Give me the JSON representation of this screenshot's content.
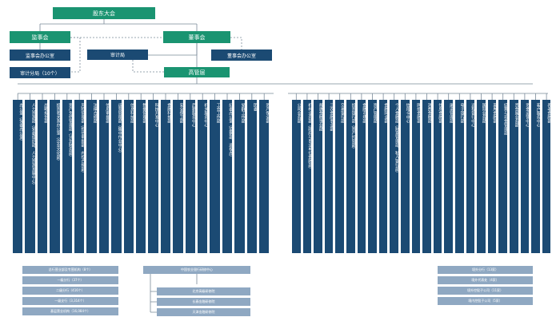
{
  "top": {
    "shareholders": "股东大会",
    "supervisory_board": "监事会",
    "board": "董事会",
    "supervisory_office": "监事会办公室",
    "audit_bureau": "审计局",
    "board_office": "董事会办公室",
    "audit_branches": "审计分局（10个）",
    "senior_management": "高管层"
  },
  "left_departments": [
    "办公室（党委办公室）",
    "人力资源部（党委组织部、人力资源发展中心）",
    "战略规划部",
    "投资者关系办公室（企业文化部）",
    "资产负债管理部（计划财务部）",
    "风险管理部（授信审批部、内控合规部）",
    "法律合规部",
    "信用审批部",
    "运营管理部（集中作业中心）",
    "信息科技部",
    "数据管理部",
    "科技开发中心",
    "金融科技部",
    "安全保卫部",
    "后勤服务中心",
    "机关服务中心",
    "工会工作部",
    "纪委办公室（监察部、巡视办）",
    "党群工作部",
    "团委",
    "资产保全部"
  ],
  "right_departments": [
    "公司业务部",
    "机构业务部（政府与事业单位金融部）",
    "普惠金融事业部",
    "三农金融事业部",
    "交易银行部",
    "投资银行部（资产托管部）",
    "金融市场部",
    "资产管理部",
    "金融同业部",
    "个人金融部（财富管理部、私人银行部）",
    "信用卡中心",
    "网络金融部",
    "消费金融部",
    "住房金融部",
    "渠道管理部",
    "电子银行部",
    "远程银行中心",
    "国际业务部",
    "离岸金融部",
    "结算与现金管理部",
    "贵金属业务部",
    "资金运营中心",
    "客户服务中心",
    "养老金融部"
  ],
  "left_bottom": [
    "总行营业部及专营机构（8个）",
    "一级分行（37个）",
    "二级分行（416个）",
    "一级支行（3,314个）",
    "基层营业机构（16,084个）"
  ],
  "mid_bottom": {
    "header": "中国农业银行研修中心",
    "items": [
      "北京高级研修院",
      "长春金融研修院",
      "天津金融研修院"
    ]
  },
  "right_bottom": [
    "境外分行（13家）",
    "境外代表处（4家）",
    "境外控股子公司（11家）",
    "境内控股子公司（5家）"
  ],
  "colors": {
    "green": "#1a9471",
    "navy": "#1b4a73",
    "steel": "#8fa8c2",
    "line": "#7a8a99"
  }
}
